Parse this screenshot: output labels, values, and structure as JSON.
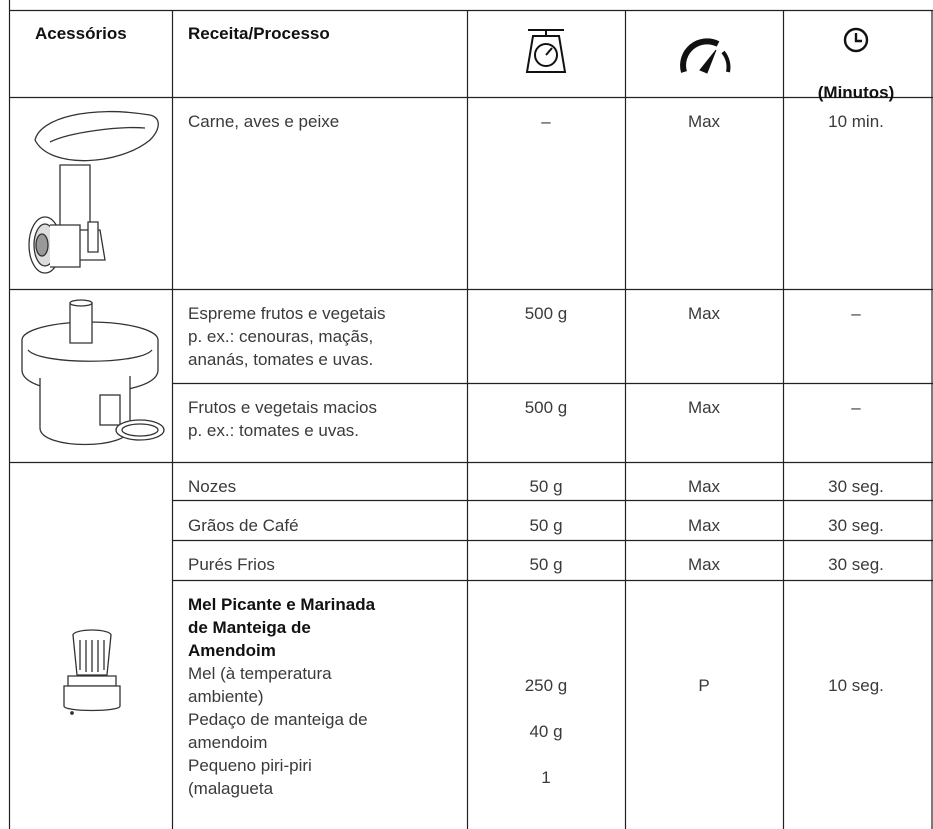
{
  "table": {
    "header": {
      "accessories": "Acessórios",
      "recipe": "Receita/Processo",
      "time_unit": "(Minutos)"
    },
    "rows": [
      {
        "recipe": [
          "Carne, aves e peixe"
        ],
        "weight": "–",
        "speed": "Max",
        "time": "10 min."
      },
      {
        "recipe": [
          "Espreme frutos e vegetais",
          "p. ex.: cenouras, maçãs,",
          "ananás, tomates e uvas."
        ],
        "weight": "500 g",
        "speed": "Max",
        "time": "–"
      },
      {
        "recipe": [
          "Frutos e vegetais macios",
          "p. ex.: tomates e uvas."
        ],
        "weight": "500 g",
        "speed": "Max",
        "time": "–"
      },
      {
        "recipe": [
          "Nozes"
        ],
        "weight": "50 g",
        "speed": "Max",
        "time": "30 seg."
      },
      {
        "recipe": [
          "Grãos de Café"
        ],
        "weight": "50 g",
        "speed": "Max",
        "time": "30 seg."
      },
      {
        "recipe": [
          "Purés Frios"
        ],
        "weight": "50 g",
        "speed": "Max",
        "time": "30 seg."
      }
    ],
    "recipe_block": {
      "title": [
        "Mel Picante e Marinada",
        "de Manteiga de",
        "Amendoim"
      ],
      "ingredients": [
        {
          "name": [
            "Mel (à temperatura",
            "ambiente)"
          ],
          "quantity": "250 g"
        },
        {
          "name": [
            "Pedaço de manteiga de",
            "amendoim"
          ],
          "quantity": "40 g"
        },
        {
          "name": [
            "Pequeno piri-piri",
            "(malagueta"
          ],
          "quantity": "1"
        }
      ],
      "speed": "P",
      "time": "10 seg."
    }
  }
}
